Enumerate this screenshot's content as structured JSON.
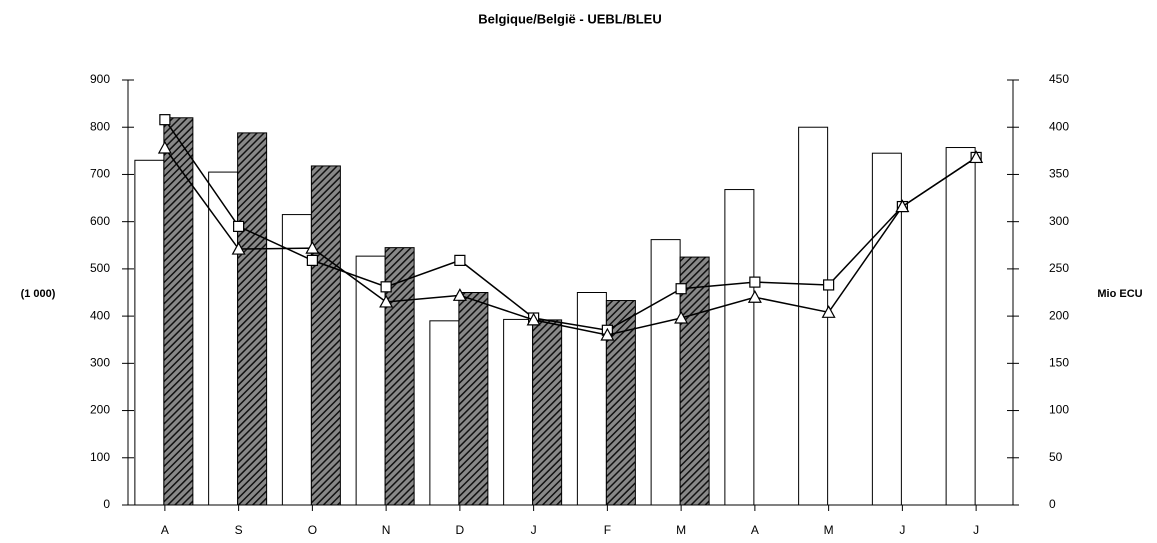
{
  "chart_data": {
    "type": "bar",
    "title": "Belgique/België - UEBL/BLEU",
    "y_label": "(1 000)",
    "y2_label": "Mio ECU",
    "categories": [
      "A",
      "S",
      "O",
      "N",
      "D",
      "J",
      "F",
      "M",
      "A",
      "M",
      "J",
      "J"
    ],
    "ylim": [
      0,
      900
    ],
    "yticks": [
      0,
      100,
      200,
      300,
      400,
      500,
      600,
      700,
      800,
      900
    ],
    "y2lim": [
      0,
      450
    ],
    "y2ticks": [
      0,
      50,
      100,
      150,
      200,
      250,
      300,
      350,
      400,
      450
    ],
    "series": [
      {
        "type": "bar",
        "color": "#ffffff",
        "pattern": "plain",
        "values": [
          730,
          705,
          615,
          527,
          390,
          393,
          450,
          562,
          668,
          800,
          745,
          757
        ]
      },
      {
        "type": "bar",
        "color": "#333333",
        "pattern": "hatched",
        "values": [
          820,
          788,
          718,
          545,
          450,
          392,
          433,
          525,
          null,
          null,
          null,
          null
        ]
      },
      {
        "type": "line",
        "axis": "y2",
        "color": "#000000",
        "marker": "square",
        "values": [
          408,
          295,
          259,
          231,
          259,
          198,
          185,
          229,
          236,
          233,
          316,
          368
        ]
      },
      {
        "type": "line",
        "axis": "y2",
        "color": "#000000",
        "marker": "triangle",
        "values": [
          378,
          271,
          272,
          215,
          222,
          196,
          180,
          198,
          220,
          204,
          316,
          368
        ]
      }
    ]
  }
}
